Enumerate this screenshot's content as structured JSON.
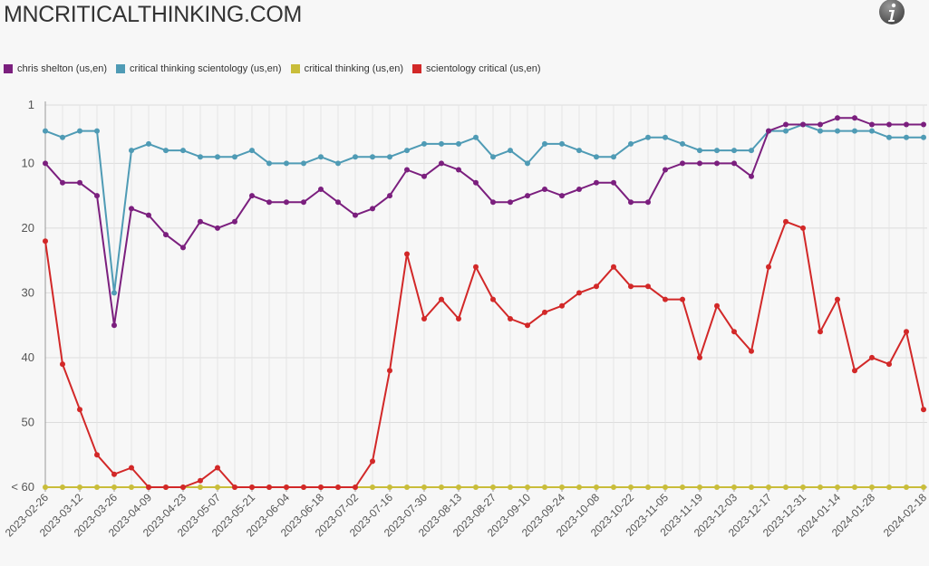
{
  "header": {
    "title": "MNCRITICALTHINKING.COM",
    "info_icon": "info-icon"
  },
  "chart_data": {
    "type": "line",
    "legend_position": "top-left",
    "grid": true,
    "y_axis": {
      "inverted": true,
      "range": [
        1,
        60
      ],
      "ticks": [
        {
          "value": 1,
          "label": "1"
        },
        {
          "value": 10,
          "label": "10"
        },
        {
          "value": 20,
          "label": "20"
        },
        {
          "value": 30,
          "label": "30"
        },
        {
          "value": 40,
          "label": "40"
        },
        {
          "value": 50,
          "label": "50"
        },
        {
          "value": 60,
          "label": "< 60"
        }
      ]
    },
    "x_tick_labels": [
      "2023-02-26",
      "2023-03-12",
      "2023-03-26",
      "2023-04-09",
      "2023-04-23",
      "2023-05-07",
      "2023-05-21",
      "2023-06-04",
      "2023-06-18",
      "2023-07-02",
      "2023-07-16",
      "2023-07-30",
      "2023-08-13",
      "2023-08-27",
      "2023-09-10",
      "2023-09-24",
      "2023-10-08",
      "2023-10-22",
      "2023-11-05",
      "2023-11-19",
      "2023-12-03",
      "2023-12-17",
      "2023-12-31",
      "2024-01-14",
      "2024-01-28",
      "2024-02-18"
    ],
    "x": [
      "2023-02-26",
      "2023-03-05",
      "2023-03-12",
      "2023-03-19",
      "2023-03-26",
      "2023-04-02",
      "2023-04-09",
      "2023-04-16",
      "2023-04-23",
      "2023-04-30",
      "2023-05-07",
      "2023-05-14",
      "2023-05-21",
      "2023-05-28",
      "2023-06-04",
      "2023-06-11",
      "2023-06-18",
      "2023-06-25",
      "2023-07-02",
      "2023-07-09",
      "2023-07-16",
      "2023-07-23",
      "2023-07-30",
      "2023-08-06",
      "2023-08-13",
      "2023-08-20",
      "2023-08-27",
      "2023-09-03",
      "2023-09-10",
      "2023-09-17",
      "2023-09-24",
      "2023-10-01",
      "2023-10-08",
      "2023-10-15",
      "2023-10-22",
      "2023-10-29",
      "2023-11-05",
      "2023-11-12",
      "2023-11-19",
      "2023-11-26",
      "2023-12-03",
      "2023-12-10",
      "2023-12-17",
      "2023-12-24",
      "2023-12-31",
      "2024-01-07",
      "2024-01-14",
      "2024-01-21",
      "2024-01-28",
      "2024-02-04",
      "2024-02-11",
      "2024-02-18"
    ],
    "series": [
      {
        "name": "chris shelton (us,en)",
        "color": "#7b1f7e",
        "values": [
          10,
          13,
          13,
          15,
          35,
          17,
          18,
          21,
          23,
          19,
          20,
          19,
          15,
          16,
          16,
          16,
          14,
          16,
          18,
          17,
          15,
          11,
          12,
          10,
          11,
          13,
          16,
          16,
          15,
          14,
          15,
          14,
          13,
          13,
          16,
          16,
          11,
          10,
          10,
          10,
          10,
          12,
          5,
          4,
          4,
          4,
          3,
          3,
          4,
          4,
          4,
          4
        ]
      },
      {
        "name": "critical thinking scientology (us,en)",
        "color": "#4f9bb5",
        "values": [
          5,
          6,
          5,
          5,
          30,
          8,
          7,
          8,
          8,
          9,
          9,
          9,
          8,
          10,
          10,
          10,
          9,
          10,
          9,
          9,
          9,
          8,
          7,
          7,
          7,
          6,
          9,
          8,
          10,
          7,
          7,
          8,
          9,
          9,
          7,
          6,
          6,
          7,
          8,
          8,
          8,
          8,
          5,
          5,
          4,
          5,
          5,
          5,
          5,
          6,
          6,
          6
        ]
      },
      {
        "name": "critical thinking (us,en)",
        "color": "#c9bd3a",
        "values": [
          60,
          60,
          60,
          60,
          60,
          60,
          60,
          60,
          60,
          60,
          60,
          60,
          60,
          60,
          60,
          60,
          60,
          60,
          60,
          60,
          60,
          60,
          60,
          60,
          60,
          60,
          60,
          60,
          60,
          60,
          60,
          60,
          60,
          60,
          60,
          60,
          60,
          60,
          60,
          60,
          60,
          60,
          60,
          60,
          60,
          60,
          60,
          60,
          60,
          60,
          60,
          60
        ]
      },
      {
        "name": "scientology critical (us,en)",
        "color": "#d22828",
        "values": [
          22,
          41,
          48,
          55,
          58,
          57,
          60,
          60,
          60,
          59,
          57,
          60,
          60,
          60,
          60,
          60,
          60,
          60,
          60,
          56,
          42,
          24,
          34,
          31,
          34,
          26,
          31,
          34,
          35,
          33,
          32,
          30,
          29,
          26,
          29,
          29,
          31,
          31,
          40,
          32,
          36,
          39,
          26,
          19,
          20,
          36,
          31,
          42,
          40,
          41,
          36,
          48
        ]
      }
    ]
  }
}
